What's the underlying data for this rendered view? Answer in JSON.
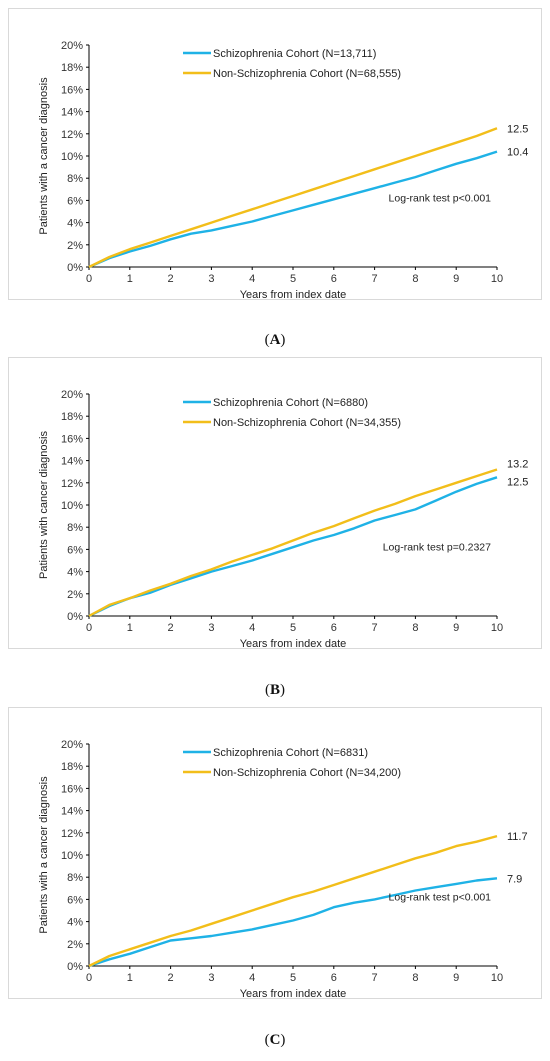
{
  "colors": {
    "schizophrenia": "#1FB2E6",
    "non_schizophrenia": "#F2BE1A",
    "axis": "#000000"
  },
  "chart_data": [
    {
      "type": "line",
      "caption": {
        "open": "(",
        "label": "A",
        "close": ")"
      },
      "xlabel": "Years from index date",
      "ylabel": "Patients with a cancer diagnosis",
      "xlim": [
        0,
        10
      ],
      "ylim": [
        0,
        20
      ],
      "xticks": [
        "0",
        "1",
        "2",
        "3",
        "4",
        "5",
        "6",
        "7",
        "8",
        "9",
        "10"
      ],
      "yticks": [
        "0%",
        "2%",
        "4%",
        "6%",
        "8%",
        "10%",
        "12%",
        "14%",
        "16%",
        "18%",
        "20%"
      ],
      "legend_position": "top-center",
      "grid": false,
      "annotation": "Log-rank test p<0.001",
      "series": [
        {
          "name": "Schizophrenia Cohort (N=13,711)",
          "color": "#1FB2E6",
          "end_label": "10.4",
          "x": [
            0,
            0.5,
            1,
            1.5,
            2,
            2.5,
            3,
            3.5,
            4,
            4.5,
            5,
            5.5,
            6,
            6.5,
            7,
            7.5,
            8,
            8.5,
            9,
            9.5,
            10
          ],
          "y": [
            0,
            0.8,
            1.4,
            1.9,
            2.5,
            3.0,
            3.3,
            3.7,
            4.1,
            4.6,
            5.1,
            5.6,
            6.1,
            6.6,
            7.1,
            7.6,
            8.1,
            8.7,
            9.3,
            9.8,
            10.4
          ]
        },
        {
          "name": "Non-Schizophrenia Cohort  (N=68,555)",
          "color": "#F2BE1A",
          "end_label": "12.5",
          "x": [
            0,
            0.5,
            1,
            1.5,
            2,
            2.5,
            3,
            3.5,
            4,
            4.5,
            5,
            5.5,
            6,
            6.5,
            7,
            7.5,
            8,
            8.5,
            9,
            9.5,
            10
          ],
          "y": [
            0,
            0.9,
            1.6,
            2.2,
            2.8,
            3.4,
            4.0,
            4.6,
            5.2,
            5.8,
            6.4,
            7.0,
            7.6,
            8.2,
            8.8,
            9.4,
            10.0,
            10.6,
            11.2,
            11.8,
            12.5
          ]
        }
      ]
    },
    {
      "type": "line",
      "caption": {
        "open": "(",
        "label": "B",
        "close": ")"
      },
      "xlabel": "Years from index date",
      "ylabel": "Patients with cancer diagnosis",
      "xlim": [
        0,
        10
      ],
      "ylim": [
        0,
        20
      ],
      "xticks": [
        "0",
        "1",
        "2",
        "3",
        "4",
        "5",
        "6",
        "7",
        "8",
        "9",
        "10"
      ],
      "yticks": [
        "0%",
        "2%",
        "4%",
        "6%",
        "8%",
        "10%",
        "12%",
        "14%",
        "16%",
        "18%",
        "20%"
      ],
      "legend_position": "top-center",
      "grid": false,
      "annotation": "Log-rank test p=0.2327",
      "series": [
        {
          "name": "Schizophrenia Cohort (N=6880)",
          "color": "#1FB2E6",
          "end_label": "12.5",
          "x": [
            0,
            0.5,
            1,
            1.5,
            2,
            2.5,
            3,
            3.5,
            4,
            4.5,
            5,
            5.5,
            6,
            6.5,
            7,
            7.5,
            8,
            8.5,
            9,
            9.5,
            10
          ],
          "y": [
            0,
            0.9,
            1.6,
            2.1,
            2.8,
            3.4,
            4.0,
            4.5,
            5.0,
            5.6,
            6.2,
            6.8,
            7.3,
            7.9,
            8.6,
            9.1,
            9.6,
            10.4,
            11.2,
            11.9,
            12.5
          ]
        },
        {
          "name": "Non-Schizophrenia Cohort (N=34,355)",
          "color": "#F2BE1A",
          "end_label": "13.2",
          "x": [
            0,
            0.5,
            1,
            1.5,
            2,
            2.5,
            3,
            3.5,
            4,
            4.5,
            5,
            5.5,
            6,
            6.5,
            7,
            7.5,
            8,
            8.5,
            9,
            9.5,
            10
          ],
          "y": [
            0,
            1.0,
            1.6,
            2.3,
            2.9,
            3.6,
            4.2,
            4.9,
            5.5,
            6.1,
            6.8,
            7.5,
            8.1,
            8.8,
            9.5,
            10.1,
            10.8,
            11.4,
            12.0,
            12.6,
            13.2
          ]
        }
      ]
    },
    {
      "type": "line",
      "caption": {
        "open": "(",
        "label": "C",
        "close": ")"
      },
      "xlabel": "Years from index date",
      "ylabel": "Patients with a cancer diagnosis",
      "xlim": [
        0,
        10
      ],
      "ylim": [
        0,
        20
      ],
      "xticks": [
        "0",
        "1",
        "2",
        "3",
        "4",
        "5",
        "6",
        "7",
        "8",
        "9",
        "10"
      ],
      "yticks": [
        "0%",
        "2%",
        "4%",
        "6%",
        "8%",
        "10%",
        "12%",
        "14%",
        "16%",
        "18%",
        "20%"
      ],
      "legend_position": "top-center",
      "grid": false,
      "annotation": "Log-rank test p<0.001",
      "series": [
        {
          "name": "Schizophrenia Cohort  (N=6831)",
          "color": "#1FB2E6",
          "end_label": "7.9",
          "x": [
            0,
            0.5,
            1,
            1.5,
            2,
            2.5,
            3,
            3.5,
            4,
            4.5,
            5,
            5.5,
            6,
            6.5,
            7,
            7.5,
            8,
            8.5,
            9,
            9.5,
            10
          ],
          "y": [
            0,
            0.6,
            1.1,
            1.7,
            2.3,
            2.5,
            2.7,
            3.0,
            3.3,
            3.7,
            4.1,
            4.6,
            5.3,
            5.7,
            6.0,
            6.4,
            6.8,
            7.1,
            7.4,
            7.7,
            7.9
          ]
        },
        {
          "name": "Non-Schizophrenia Cohort  (N=34,200)",
          "color": "#F2BE1A",
          "end_label": "11.7",
          "x": [
            0,
            0.5,
            1,
            1.5,
            2,
            2.5,
            3,
            3.5,
            4,
            4.5,
            5,
            5.5,
            6,
            6.5,
            7,
            7.5,
            8,
            8.5,
            9,
            9.5,
            10
          ],
          "y": [
            0,
            0.9,
            1.5,
            2.1,
            2.7,
            3.2,
            3.8,
            4.4,
            5.0,
            5.6,
            6.2,
            6.7,
            7.3,
            7.9,
            8.5,
            9.1,
            9.7,
            10.2,
            10.8,
            11.2,
            11.7
          ]
        }
      ]
    }
  ]
}
